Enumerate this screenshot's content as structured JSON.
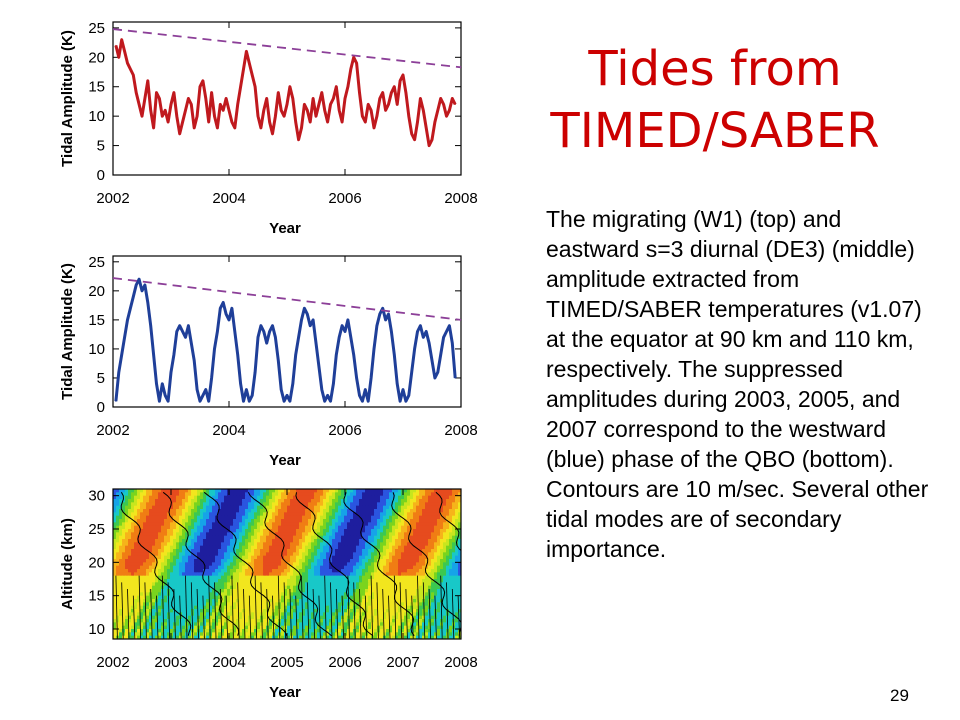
{
  "slide": {
    "title_line1": "Tides from",
    "title_line2": "TIMED/SABER",
    "body": "The migrating (W1) (top) and eastward s=3 diurnal (DE3) (middle) amplitude extracted from TIMED/SABER temperatures (v1.07) at the equator at 90 km and 110 km, respectively. The suppressed amplitudes during 2003, 2005, and 2007 correspond to the westward (blue) phase of the QBO (bottom). Contours are 10 m/sec. Several other tidal modes are of secondary importance.",
    "page_number": "29",
    "title_color": "#cc0000"
  },
  "chart_data": [
    {
      "type": "line",
      "xlabel": "Year",
      "ylabel": "Tidal Amplitude (K)",
      "xlim": [
        2002,
        2008
      ],
      "ylim": [
        0,
        26
      ],
      "xticks": [
        2002,
        2004,
        2006,
        2008
      ],
      "yticks": [
        0,
        5,
        10,
        15,
        20,
        25
      ],
      "series": [
        {
          "color": "#c0191e",
          "x": [
            2002.05,
            2002.1,
            2002.15,
            2002.2,
            2002.25,
            2002.3,
            2002.35,
            2002.4,
            2002.45,
            2002.5,
            2002.55,
            2002.6,
            2002.65,
            2002.7,
            2002.75,
            2002.8,
            2002.85,
            2002.9,
            2002.95,
            2003.0,
            2003.05,
            2003.1,
            2003.15,
            2003.2,
            2003.25,
            2003.3,
            2003.35,
            2003.4,
            2003.45,
            2003.5,
            2003.55,
            2003.6,
            2003.65,
            2003.7,
            2003.75,
            2003.8,
            2003.85,
            2003.9,
            2003.95,
            2004.0,
            2004.05,
            2004.1,
            2004.15,
            2004.2,
            2004.25,
            2004.3,
            2004.35,
            2004.4,
            2004.45,
            2004.5,
            2004.55,
            2004.6,
            2004.65,
            2004.7,
            2004.75,
            2004.8,
            2004.85,
            2004.9,
            2004.95,
            2005.0,
            2005.05,
            2005.1,
            2005.15,
            2005.2,
            2005.25,
            2005.3,
            2005.35,
            2005.4,
            2005.45,
            2005.5,
            2005.55,
            2005.6,
            2005.65,
            2005.7,
            2005.75,
            2005.8,
            2005.85,
            2005.9,
            2005.95,
            2006.0,
            2006.05,
            2006.1,
            2006.15,
            2006.2,
            2006.25,
            2006.3,
            2006.35,
            2006.4,
            2006.45,
            2006.5,
            2006.55,
            2006.6,
            2006.65,
            2006.7,
            2006.75,
            2006.8,
            2006.85,
            2006.9,
            2006.95,
            2007.0,
            2007.05,
            2007.1,
            2007.15,
            2007.2,
            2007.25,
            2007.3,
            2007.35,
            2007.4,
            2007.45,
            2007.5,
            2007.55,
            2007.6,
            2007.65,
            2007.7,
            2007.75,
            2007.8,
            2007.85,
            2007.9
          ],
          "values": [
            22,
            20,
            23,
            21,
            19,
            18,
            17,
            14,
            12,
            10,
            13,
            16,
            11,
            8,
            14,
            13,
            10,
            11,
            9,
            12,
            14,
            10,
            7,
            9,
            11,
            13,
            12,
            8,
            10,
            15,
            16,
            13,
            9,
            14,
            10,
            8,
            12,
            11,
            13,
            11,
            9,
            8,
            12,
            15,
            18,
            21,
            19,
            17,
            15,
            10,
            8,
            11,
            13,
            9,
            7,
            10,
            14,
            11,
            10,
            12,
            15,
            13,
            9,
            6,
            8,
            12,
            11,
            9,
            13,
            10,
            12,
            14,
            11,
            9,
            12,
            13,
            15,
            11,
            9,
            13,
            15,
            18,
            20,
            19,
            14,
            10,
            9,
            12,
            11,
            8,
            10,
            13,
            14,
            11,
            12,
            14,
            15,
            12,
            16,
            17,
            14,
            10,
            7,
            6,
            9,
            13,
            11,
            8,
            5,
            6,
            9,
            11,
            13,
            12,
            10,
            11,
            13,
            12
          ]
        }
      ],
      "trend": {
        "x": [
          2002.0,
          2008.0
        ],
        "values": [
          24.8,
          18.3
        ],
        "color": "#8c3f98"
      }
    },
    {
      "type": "line",
      "xlabel": "Year",
      "ylabel": "Tidal Amplitude (K)",
      "xlim": [
        2002,
        2008
      ],
      "ylim": [
        0,
        26
      ],
      "xticks": [
        2002,
        2004,
        2006,
        2008
      ],
      "yticks": [
        0,
        5,
        10,
        15,
        20,
        25
      ],
      "series": [
        {
          "color": "#1f3f99",
          "x": [
            2002.05,
            2002.1,
            2002.15,
            2002.2,
            2002.25,
            2002.3,
            2002.35,
            2002.4,
            2002.45,
            2002.5,
            2002.55,
            2002.6,
            2002.65,
            2002.7,
            2002.75,
            2002.8,
            2002.85,
            2002.9,
            2002.95,
            2003.0,
            2003.05,
            2003.1,
            2003.15,
            2003.2,
            2003.25,
            2003.3,
            2003.35,
            2003.4,
            2003.45,
            2003.5,
            2003.55,
            2003.6,
            2003.65,
            2003.7,
            2003.75,
            2003.8,
            2003.85,
            2003.9,
            2003.95,
            2004.0,
            2004.05,
            2004.1,
            2004.15,
            2004.2,
            2004.25,
            2004.3,
            2004.35,
            2004.4,
            2004.45,
            2004.5,
            2004.55,
            2004.6,
            2004.65,
            2004.7,
            2004.75,
            2004.8,
            2004.85,
            2004.9,
            2004.95,
            2005.0,
            2005.05,
            2005.1,
            2005.15,
            2005.2,
            2005.25,
            2005.3,
            2005.35,
            2005.4,
            2005.45,
            2005.5,
            2005.55,
            2005.6,
            2005.65,
            2005.7,
            2005.75,
            2005.8,
            2005.85,
            2005.9,
            2005.95,
            2006.0,
            2006.05,
            2006.1,
            2006.15,
            2006.2,
            2006.25,
            2006.3,
            2006.35,
            2006.4,
            2006.45,
            2006.5,
            2006.55,
            2006.6,
            2006.65,
            2006.7,
            2006.75,
            2006.8,
            2006.85,
            2006.9,
            2006.95,
            2007.0,
            2007.05,
            2007.1,
            2007.15,
            2007.2,
            2007.25,
            2007.3,
            2007.35,
            2007.4,
            2007.45,
            2007.5,
            2007.55,
            2007.6,
            2007.65,
            2007.7,
            2007.75,
            2007.8,
            2007.85,
            2007.9
          ],
          "values": [
            1,
            6,
            9,
            12,
            15,
            17,
            19,
            21,
            22,
            20,
            21,
            18,
            14,
            9,
            4,
            1,
            4,
            2,
            1,
            6,
            9,
            13,
            14,
            13,
            12,
            14,
            11,
            8,
            3,
            1,
            2,
            3,
            1,
            5,
            10,
            13,
            17,
            18,
            16,
            15,
            17,
            13,
            9,
            4,
            1,
            3,
            1,
            2,
            6,
            12,
            14,
            13,
            11,
            13,
            14,
            12,
            8,
            3,
            1,
            2,
            1,
            4,
            9,
            12,
            15,
            17,
            16,
            14,
            15,
            11,
            7,
            3,
            1,
            2,
            1,
            4,
            9,
            12,
            14,
            13,
            15,
            12,
            9,
            5,
            2,
            1,
            3,
            1,
            5,
            10,
            14,
            16,
            17,
            15,
            16,
            13,
            9,
            4,
            1,
            3,
            1,
            2,
            6,
            10,
            13,
            14,
            12,
            13,
            11,
            8,
            5,
            6,
            9,
            12,
            13,
            14,
            11,
            5
          ]
        }
      ],
      "trend": {
        "x": [
          2002.0,
          2008.0
        ],
        "values": [
          22.2,
          15.0
        ],
        "color": "#8c3f98"
      }
    },
    {
      "type": "heatmap",
      "xlabel": "Year",
      "ylabel": "Altitude (km)",
      "xlim": [
        2002,
        2008
      ],
      "ylim": [
        8.5,
        31
      ],
      "xticks": [
        2002,
        2003,
        2004,
        2005,
        2006,
        2007,
        2008
      ],
      "yticks": [
        10,
        15,
        20,
        25,
        30
      ],
      "qbo_period_years": 2.35,
      "colors": [
        "#1e1e9e",
        "#2a55e0",
        "#16a3e8",
        "#18c8c8",
        "#3cc850",
        "#7ad41e",
        "#c8e61e",
        "#f2e61e",
        "#f6b41a",
        "#f07d14",
        "#e64b1e"
      ],
      "phase_anchor_years": [
        2002.35,
        2004.7,
        2007.05
      ]
    }
  ]
}
